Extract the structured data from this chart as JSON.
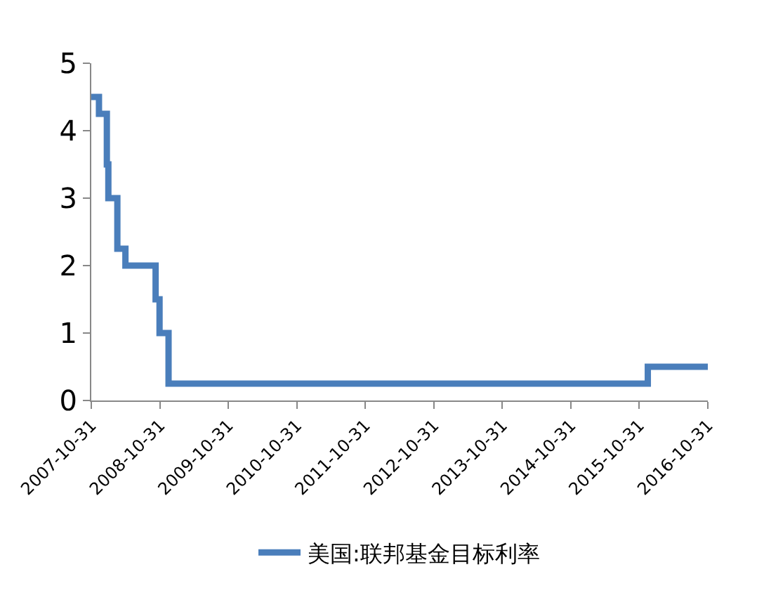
{
  "chart_data": {
    "type": "step",
    "x": [
      "2007-10-31",
      "2007-12-11",
      "2008-01-22",
      "2008-01-30",
      "2008-03-18",
      "2008-04-30",
      "2008-10-08",
      "2008-10-29",
      "2008-12-16",
      "2015-12-16",
      "2016-10-31"
    ],
    "series": [
      {
        "name": "美国:联邦基金目标利率",
        "color": "#4a7ebb",
        "values": [
          4.5,
          4.25,
          3.5,
          3.0,
          2.25,
          2.0,
          1.5,
          1.0,
          0.25,
          0.5,
          0.5
        ]
      }
    ],
    "xlim": [
      "2007-10-31",
      "2016-10-31"
    ],
    "xticks": [
      "2007-10-31",
      "2008-10-31",
      "2009-10-31",
      "2010-10-31",
      "2011-10-31",
      "2012-10-31",
      "2013-10-31",
      "2014-10-31",
      "2015-10-31",
      "2016-10-31"
    ],
    "ylim": [
      0,
      5
    ],
    "yticks": [
      0,
      1,
      2,
      3,
      4,
      5
    ],
    "grid": false,
    "legend": "bottom",
    "marker": "none",
    "line_style": "solid"
  }
}
